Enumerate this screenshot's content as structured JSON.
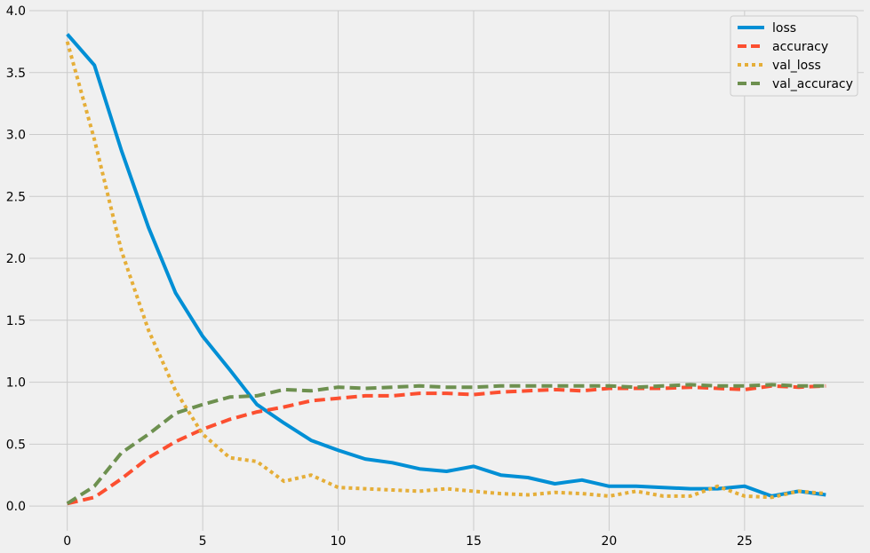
{
  "chart_data": {
    "type": "line",
    "title": "",
    "xlabel": "",
    "ylabel": "",
    "xlim": [
      -1.4,
      29.4
    ],
    "ylim": [
      -0.2,
      4.0
    ],
    "xticks": [
      0,
      5,
      10,
      15,
      20,
      25
    ],
    "yticks": [
      0.0,
      0.5,
      1.0,
      1.5,
      2.0,
      2.5,
      3.0,
      3.5,
      4.0
    ],
    "grid": true,
    "legend_position": "top-right",
    "x": [
      0,
      1,
      2,
      3,
      4,
      5,
      6,
      7,
      8,
      9,
      10,
      11,
      12,
      13,
      14,
      15,
      16,
      17,
      18,
      19,
      20,
      21,
      22,
      23,
      24,
      25,
      26,
      27,
      28
    ],
    "series": [
      {
        "name": "loss",
        "color": "#008fd5",
        "dash": "solid",
        "values": [
          3.81,
          3.56,
          2.87,
          2.25,
          1.72,
          1.37,
          1.1,
          0.82,
          0.67,
          0.53,
          0.45,
          0.38,
          0.35,
          0.3,
          0.28,
          0.32,
          0.25,
          0.23,
          0.18,
          0.21,
          0.16,
          0.16,
          0.15,
          0.14,
          0.14,
          0.16,
          0.08,
          0.12,
          0.09
        ]
      },
      {
        "name": "accuracy",
        "color": "#fc4f30",
        "dash": "dashed",
        "values": [
          0.02,
          0.07,
          0.22,
          0.39,
          0.52,
          0.62,
          0.7,
          0.76,
          0.8,
          0.85,
          0.87,
          0.89,
          0.89,
          0.91,
          0.91,
          0.9,
          0.92,
          0.93,
          0.94,
          0.93,
          0.95,
          0.95,
          0.95,
          0.96,
          0.95,
          0.94,
          0.97,
          0.96,
          0.97
        ]
      },
      {
        "name": "val_loss",
        "color": "#e5ae38",
        "dash": "dotted",
        "values": [
          3.75,
          2.96,
          2.06,
          1.42,
          0.93,
          0.58,
          0.39,
          0.36,
          0.2,
          0.25,
          0.15,
          0.14,
          0.13,
          0.12,
          0.14,
          0.12,
          0.1,
          0.09,
          0.11,
          0.1,
          0.08,
          0.12,
          0.08,
          0.08,
          0.16,
          0.08,
          0.07,
          0.12,
          0.1
        ]
      },
      {
        "name": "val_accuracy",
        "color": "#6d904f",
        "dash": "dashed",
        "values": [
          0.02,
          0.16,
          0.43,
          0.58,
          0.75,
          0.82,
          0.88,
          0.89,
          0.94,
          0.93,
          0.96,
          0.95,
          0.96,
          0.97,
          0.96,
          0.96,
          0.97,
          0.97,
          0.97,
          0.97,
          0.97,
          0.96,
          0.97,
          0.98,
          0.97,
          0.97,
          0.98,
          0.97,
          0.97
        ]
      }
    ]
  }
}
